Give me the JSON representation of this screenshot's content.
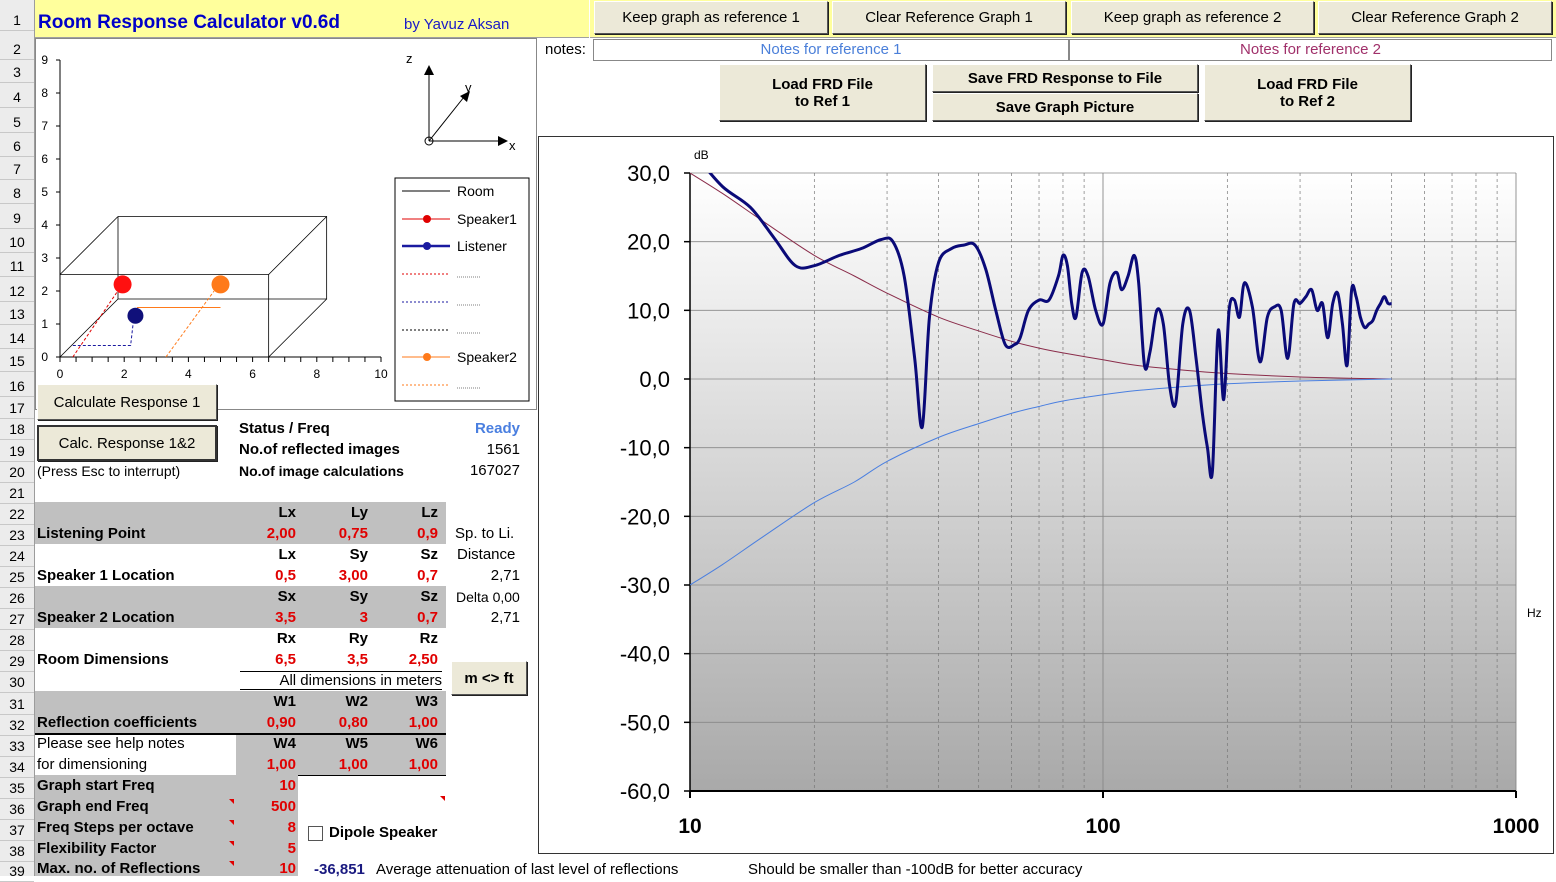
{
  "header": {
    "title": "Room Response Calculator  v0.6d",
    "author": "by Yavuz Aksan"
  },
  "ref_buttons": {
    "keep1": "Keep graph as reference 1",
    "clear1": "Clear Reference Graph 1",
    "keep2": "Keep graph as reference 2",
    "clear2": "Clear Reference Graph 2"
  },
  "notes": {
    "label": "notes:",
    "ref1": "Notes for reference 1",
    "ref2": "Notes for reference 2",
    "ref1_color": "#4a7fd9",
    "ref2_color": "#a0306a"
  },
  "file_buttons": {
    "load1_line1": "Load FRD File",
    "load1_line2": "to Ref 1",
    "save_frd": "Save FRD Response to File",
    "save_pic": "Save Graph Picture",
    "load2_line1": "Load FRD File",
    "load2_line2": "to Ref 2"
  },
  "row_numbers": [
    "1",
    "2",
    "3",
    "4",
    "5",
    "6",
    "7",
    "8",
    "9",
    "10",
    "11",
    "12",
    "13",
    "14",
    "15",
    "16",
    "17",
    "18",
    "19",
    "20",
    "21",
    "22",
    "23",
    "24",
    "25",
    "26",
    "27",
    "28",
    "29",
    "30",
    "31",
    "32",
    "33",
    "34",
    "35",
    "36",
    "37",
    "38",
    "39"
  ],
  "room_plot": {
    "y_ticks": [
      "0",
      "1",
      "2",
      "3",
      "4",
      "5",
      "6",
      "7",
      "8",
      "9"
    ],
    "x_ticks": [
      "0",
      "2",
      "4",
      "6",
      "8",
      "10"
    ],
    "axis_labels": {
      "z": "z",
      "y": "y",
      "x": "x"
    },
    "legend": [
      {
        "label": "Room",
        "color": "#000000",
        "marker": false,
        "style": "solid"
      },
      {
        "label": "Speaker1",
        "color": "#e00000",
        "marker": true,
        "style": "solid"
      },
      {
        "label": "Listener",
        "color": "#1a1aa0",
        "marker": true,
        "style": "solid"
      },
      {
        "label": "",
        "color": "#e00000",
        "marker": false,
        "style": "dotted"
      },
      {
        "label": "",
        "color": "#1a1aa0",
        "marker": false,
        "style": "dotted"
      },
      {
        "label": "",
        "color": "#000000",
        "marker": false,
        "style": "dotted"
      },
      {
        "label": "Speaker2",
        "color": "#ff7a1a",
        "marker": true,
        "style": "solid"
      },
      {
        "label": "",
        "color": "#ff7a1a",
        "marker": false,
        "style": "dotted"
      }
    ]
  },
  "controls": {
    "calc1": "Calculate Response 1",
    "calc12": "Calc. Response 1&2",
    "interrupt": "(Press Esc to interrupt)",
    "m_ft": "m <> ft",
    "dipole": "Dipole Speaker"
  },
  "status": {
    "status_label": "Status / Freq",
    "status_value": "Ready",
    "reflected_label": "No.of reflected images",
    "reflected_value": "1561",
    "calcs_label": "No.of image calculations",
    "calcs_value": "167027"
  },
  "params": {
    "listening": {
      "h": [
        "Lx",
        "Ly",
        "Lz"
      ],
      "label": "Listening Point",
      "v": [
        "2,00",
        "0,75",
        "0,9"
      ]
    },
    "speaker1": {
      "h": [
        "Lx",
        "Sy",
        "Sz"
      ],
      "label": "Speaker 1 Location",
      "v": [
        "0,5",
        "3,00",
        "0,7"
      ]
    },
    "speaker2": {
      "h": [
        "Sx",
        "Sy",
        "Sz"
      ],
      "label": "Speaker 2 Location",
      "v": [
        "3,5",
        "3",
        "0,7"
      ]
    },
    "room": {
      "h": [
        "Rx",
        "Ry",
        "Rz"
      ],
      "label": "Room Dimensions",
      "v": [
        "6,5",
        "3,5",
        "2,50"
      ]
    },
    "dims_note": "All dimensions in meters",
    "refl_a": {
      "h": [
        "W1",
        "W2",
        "W3"
      ],
      "label": "Reflection coefficients",
      "v": [
        "0,90",
        "0,80",
        "1,00"
      ]
    },
    "refl_b": {
      "h": [
        "W4",
        "W5",
        "W6"
      ],
      "label1": "Please see help notes",
      "label2": "for dimensioning",
      "v": [
        "1,00",
        "1,00",
        "1,00"
      ]
    },
    "sp_to_li": "Sp. to Li.",
    "distance": "Distance",
    "dist1": "2,71",
    "delta": "Delta 0,00",
    "dist2": "2,71"
  },
  "graph_params": [
    {
      "label": "Graph start Freq",
      "value": "10"
    },
    {
      "label": "Graph end Freq",
      "value": "500"
    },
    {
      "label": "Freq Steps per octave",
      "value": "8"
    },
    {
      "label": "Flexibility Factor",
      "value": "5"
    },
    {
      "label": "Max. no. of Reflections",
      "value": "10"
    }
  ],
  "bottom": {
    "atten_value": "-36,851",
    "atten_label": "Average attenuation of last level of reflections",
    "accuracy_note": "Should be smaller than -100dB for better accuracy"
  },
  "chart_data": {
    "type": "line",
    "ylabel": "dB",
    "xlabel": "Hz",
    "xscale": "log",
    "xlim": [
      10,
      1000
    ],
    "ylim": [
      -60,
      30
    ],
    "y_ticks": [
      "30,0",
      "20,0",
      "10,0",
      "0,0",
      "-10,0",
      "-20,0",
      "-30,0",
      "-40,0",
      "-50,0",
      "-60,0"
    ],
    "y_tick_values": [
      30,
      20,
      10,
      0,
      -10,
      -20,
      -30,
      -40,
      -50,
      -60
    ],
    "x_ticks": [
      "10",
      "100",
      "1000"
    ],
    "x_tick_values": [
      10,
      100,
      1000
    ],
    "grid": true,
    "series": [
      {
        "color": "#0a0a78",
        "width": 3,
        "x": [
          10.5,
          12,
          14,
          16,
          18,
          20,
          23,
          26,
          29,
          31,
          33,
          35,
          36.5,
          38,
          40,
          43,
          46,
          49,
          52,
          55,
          58,
          61,
          63,
          66,
          70,
          74,
          78,
          80,
          82,
          84,
          86,
          89,
          92,
          96,
          100,
          104,
          108,
          111,
          115,
          119,
          122,
          126,
          130,
          135,
          140,
          145,
          150,
          156,
          162,
          168,
          174,
          179,
          184,
          190,
          196,
          202,
          208,
          214,
          220,
          230,
          240,
          250,
          260,
          270,
          280,
          290,
          300,
          310,
          320,
          330,
          340,
          350,
          360,
          370,
          380,
          390,
          400,
          410,
          420,
          430,
          440,
          450,
          460,
          470,
          480,
          490,
          500
        ],
        "y": [
          32,
          28,
          25,
          20.5,
          16.5,
          16.5,
          18,
          19,
          20.3,
          20,
          15,
          3,
          -7,
          9,
          17,
          19,
          19.5,
          19.5,
          16,
          10,
          5,
          5,
          6,
          10,
          11.5,
          11.5,
          15,
          18,
          16.5,
          11,
          9,
          15.5,
          15,
          10,
          8,
          14,
          15.5,
          13,
          15,
          18,
          14,
          2,
          4,
          10,
          8,
          -1,
          -3.5,
          8,
          10,
          3,
          -5,
          -10,
          -13.5,
          7,
          -3,
          10,
          11.5,
          9,
          14,
          10.5,
          2.5,
          9,
          10.5,
          10,
          3,
          11,
          11,
          12,
          13,
          10,
          11,
          6,
          11,
          12.5,
          8,
          2,
          13,
          12,
          9,
          7.5,
          8,
          8.5,
          10,
          11,
          12,
          11,
          11
        ]
      },
      {
        "color": "#8a2c4a",
        "width": 1,
        "x": [
          10,
          12,
          15,
          20,
          25,
          30,
          40,
          50,
          60,
          70,
          80,
          100,
          120,
          150,
          200,
          300,
          500
        ],
        "y": [
          30,
          27,
          23,
          18,
          15,
          12.5,
          9,
          7,
          5.5,
          4.5,
          3.8,
          2.8,
          2,
          1.4,
          0.8,
          0.3,
          0
        ]
      },
      {
        "color": "#4a7fe0",
        "width": 1,
        "x": [
          10,
          12,
          15,
          20,
          25,
          30,
          40,
          50,
          60,
          70,
          80,
          100,
          120,
          150,
          200,
          300,
          500
        ],
        "y": [
          -30,
          -27,
          -23,
          -18,
          -15,
          -12,
          -8.5,
          -6.5,
          -5,
          -4,
          -3.2,
          -2.3,
          -1.7,
          -1.2,
          -0.7,
          -0.3,
          0
        ]
      }
    ]
  }
}
